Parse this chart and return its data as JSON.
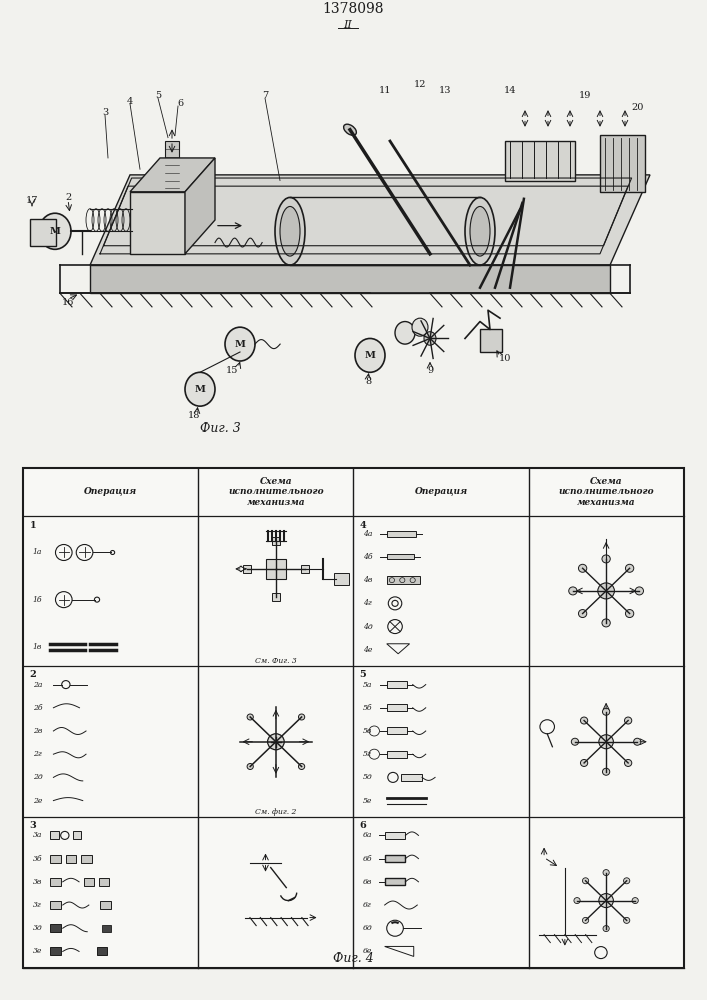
{
  "title": "1378098",
  "fig3_caption": "Фиг. 3",
  "fig4_caption": "Фиг. 4",
  "bg": "#f2f2ee",
  "ink": "#1c1c1c",
  "header_col1": "Операция",
  "header_col2": "Схема\nисполнительного\nмеханизма",
  "header_col3": "Операция",
  "header_col4": "Схема\nисполнительного\nмеханизма",
  "cm_fig3": "См. Фиг. 3",
  "cm_fig2": "См. фиг. 2",
  "II": "II"
}
